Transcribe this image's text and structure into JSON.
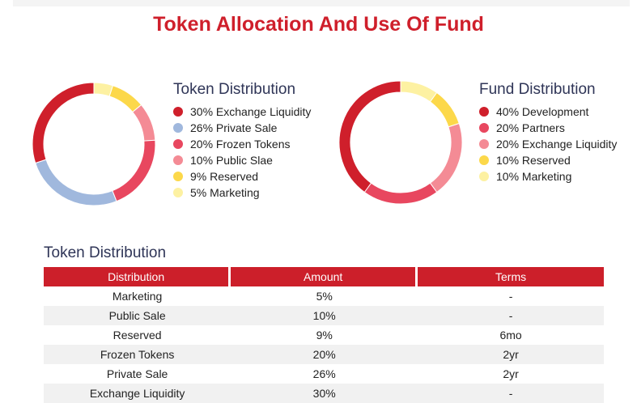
{
  "title": "Token Allocation And Use Of Fund",
  "legends": {
    "token": {
      "title": "Token Distribution",
      "items": [
        {
          "label": "30% Exchange Liquidity",
          "color": "#cf1f2b"
        },
        {
          "label": "26% Private Sale",
          "color": "#a0b8dd"
        },
        {
          "label": "20% Frozen Tokens",
          "color": "#e8475f"
        },
        {
          "label": "10% Public Slae",
          "color": "#f48b95"
        },
        {
          "label": "9% Reserved",
          "color": "#fcd84a"
        },
        {
          "label": "5% Marketing",
          "color": "#fdf1a2"
        }
      ]
    },
    "fund": {
      "title": "Fund Distribution",
      "items": [
        {
          "label": "40% Development",
          "color": "#cf1f2b"
        },
        {
          "label": "20% Partners",
          "color": "#e8475f"
        },
        {
          "label": "20% Exchange Liquidity",
          "color": "#f48b95"
        },
        {
          "label": "10% Reserved",
          "color": "#fcd84a"
        },
        {
          "label": "10% Marketing",
          "color": "#fdf1a2"
        }
      ]
    }
  },
  "chart_data": [
    {
      "type": "pie",
      "variant": "donut",
      "title": "Token Distribution",
      "categories": [
        "Marketing",
        "Reserved",
        "Public Slae",
        "Frozen Tokens",
        "Private Sale",
        "Exchange Liquidity"
      ],
      "values": [
        5,
        9,
        10,
        20,
        26,
        30
      ],
      "colors": [
        "#fdf1a2",
        "#fcd84a",
        "#f48b95",
        "#e8475f",
        "#a0b8dd",
        "#cf1f2b"
      ]
    },
    {
      "type": "pie",
      "variant": "donut",
      "title": "Fund Distribution",
      "categories": [
        "Marketing",
        "Reserved",
        "Exchange Liquidity",
        "Partners",
        "Development"
      ],
      "values": [
        10,
        10,
        20,
        20,
        40
      ],
      "colors": [
        "#fdf1a2",
        "#fcd84a",
        "#f48b95",
        "#e8475f",
        "#cf1f2b"
      ]
    }
  ],
  "table": {
    "title": "Token Distribution",
    "headers": [
      "Distribution",
      "Amount",
      "Terms"
    ],
    "rows": [
      [
        "Marketing",
        "5%",
        "-"
      ],
      [
        "Public Sale",
        "10%",
        "-"
      ],
      [
        "Reserved",
        "9%",
        "6mo"
      ],
      [
        "Frozen Tokens",
        "20%",
        "2yr"
      ],
      [
        "Private Sale",
        "26%",
        "2yr"
      ],
      [
        "Exchange Liquidity",
        "30%",
        "-"
      ]
    ]
  }
}
